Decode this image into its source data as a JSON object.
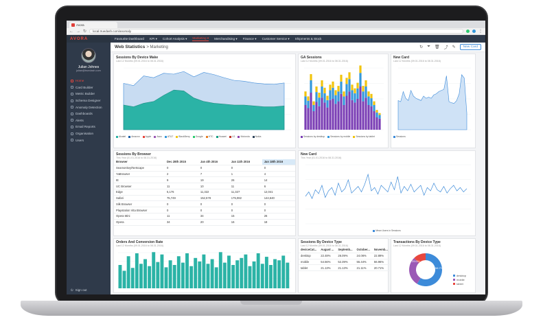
{
  "browser": {
    "tab_title": "Avora",
    "url": "local.truedash.com/anomaly"
  },
  "brand": "AVORA",
  "user": {
    "name": "Julian Johnes",
    "email": "julian@truedash.com"
  },
  "sidebar": {
    "items": [
      {
        "label": "Home",
        "icon": "home-icon",
        "active": true
      },
      {
        "label": "Card Builder",
        "icon": "card-icon"
      },
      {
        "label": "Metric Builder",
        "icon": "metric-icon"
      },
      {
        "label": "Schema Designer",
        "icon": "schema-icon"
      },
      {
        "label": "Anomaly Detection",
        "icon": "anomaly-icon"
      },
      {
        "label": "Dashboards",
        "icon": "dashboard-icon"
      },
      {
        "label": "Alerts",
        "icon": "bell-icon"
      },
      {
        "label": "Email Reports",
        "icon": "mail-icon"
      },
      {
        "label": "Organisation",
        "icon": "org-icon"
      },
      {
        "label": "Users",
        "icon": "users-icon"
      }
    ],
    "signout": "Sign out"
  },
  "topnav": [
    {
      "label": "Favourite Dashboard"
    },
    {
      "label": "KPI ▾"
    },
    {
      "label": "Cohort Analysis ▾"
    },
    {
      "label": "Marketing ▾",
      "active": true
    },
    {
      "label": "Merchandising ▾"
    },
    {
      "label": "Finance ▾"
    },
    {
      "label": "Customer Service ▾"
    },
    {
      "label": "Shipments & Stock"
    }
  ],
  "header": {
    "title": "Web Statistics",
    "sub": "> Marketing",
    "new_card": "New Card"
  },
  "cards": {
    "sessions_device": {
      "title": "Sessions By Device Make",
      "sub": "Last 12 Months (09.01.2016 to 08.31.2016)",
      "legend": [
        {
          "n": "Alcatel",
          "c": "#2bb3a6"
        },
        {
          "n": "Amazon",
          "c": "#1c5fa8"
        },
        {
          "n": "Apple",
          "c": "#e8473e"
        },
        {
          "n": "Asus",
          "c": "#9b59b6"
        },
        {
          "n": "AT&T",
          "c": "#3498db"
        },
        {
          "n": "BlackBerry",
          "c": "#f1c40f"
        },
        {
          "n": "Google",
          "c": "#2ecc71"
        },
        {
          "n": "HTC",
          "c": "#e67e22"
        },
        {
          "n": "Huawei",
          "c": "#16a085"
        },
        {
          "n": "LG",
          "c": "#c0392b"
        },
        {
          "n": "Motorola",
          "c": "#8e44ad"
        },
        {
          "n": "Nokia",
          "c": "#34495e"
        }
      ]
    },
    "ga_sessions": {
      "title": "GA Sessions",
      "sub": "Last 12 Months (09.01.2016 to 08.31.2016)",
      "legend": [
        {
          "n": "Sessions by desktop",
          "c": "#7b3fb5"
        },
        {
          "n": "Sessions by mobile",
          "c": "#3498db"
        },
        {
          "n": "Sessions by tablet",
          "c": "#f1c40f"
        }
      ]
    },
    "new_card_1": {
      "title": "New Card",
      "sub": "Last 12 Months (09.01.2016 to 08.31.2016)",
      "legend": [
        {
          "n": "Sessions",
          "c": "#3d8bd9"
        }
      ]
    },
    "sessions_browser": {
      "title": "Sessions By Browser",
      "sub": "This Year (01.01.2016 to 08.31.2016)",
      "columns": [
        "Browser",
        "Dec 28th 2015",
        "Jan 4th 2016",
        "Jan 11th 2016",
        "Jan 18th 2016"
      ],
      "rows": [
        [
          "Seamonkey/Netscape",
          "0",
          "0",
          "0",
          "0"
        ],
        [
          "YaBrowser",
          "2",
          "7",
          "1",
          "4"
        ],
        [
          "IE",
          "9",
          "19",
          "26",
          "14"
        ],
        [
          "UC Browser",
          "11",
          "10",
          "11",
          "6"
        ],
        [
          "Edge",
          "5,176",
          "11,322",
          "11,327",
          "12,041"
        ],
        [
          "Safari",
          "75,749",
          "152,578",
          "175,082",
          "144,640"
        ],
        [
          "Silk Browser",
          "0",
          "0",
          "0",
          "0"
        ],
        [
          "Playstation Vita Browser",
          "0",
          "0",
          "0",
          "0"
        ],
        [
          "Opera Mini",
          "11",
          "34",
          "15",
          "26"
        ],
        [
          "Opera",
          "34",
          "20",
          "16",
          "18"
        ]
      ]
    },
    "new_card_2": {
      "title": "New Card",
      "sub": "This Year (01.01.2016 to 08.31.2016)",
      "legend": [
        {
          "n": "Mean Users in Sessions",
          "c": "#3d8bd9"
        }
      ]
    },
    "orders": {
      "title": "Orders And Conversion Rate",
      "sub": "Last 12 Months (09.01.2016 to 08.31.2016)"
    },
    "sessions_device_type": {
      "title": "Sessions By Device Type",
      "sub": "Last 12 Months (09.01.2016 to 08.31.2016)",
      "columns": [
        "deviceCat...",
        "August ...",
        "Septemb...",
        "October...",
        "Novemb..."
      ],
      "rows": [
        [
          "desktop",
          "22.48%",
          "26.09%",
          "24.06%",
          "22.89%"
        ],
        [
          "mobile",
          "54.56%",
          "52.39%",
          "55.44%",
          "56.96%"
        ],
        [
          "tablet",
          "21.13%",
          "21.13%",
          "21.11%",
          "20.71%"
        ]
      ]
    },
    "transactions": {
      "title": "Transactions By Device Type",
      "sub": "Last 12 Months (09.01.2016 to 08.31.2016)",
      "legend": [
        {
          "n": "desktop",
          "c": "#3d8bd9"
        },
        {
          "n": "mobile",
          "c": "#9b59b6"
        },
        {
          "n": "tablet",
          "c": "#e8473e"
        }
      ],
      "labels": [
        "29.0%",
        "58.7%"
      ]
    }
  },
  "chart_data": [
    {
      "type": "area",
      "title": "Sessions By Device Make",
      "series": [
        {
          "name": "Alcatel",
          "values": [
            1050,
            1000,
            1220,
            1180,
            1280,
            1260,
            1320,
            1200,
            1300,
            1250,
            1180,
            1120,
            1100,
            1060,
            1040,
            1030,
            1060
          ]
        },
        {
          "name": "Amazon",
          "values": [
            560,
            520,
            600,
            640,
            780,
            900,
            880,
            720,
            640,
            600,
            580,
            560,
            560,
            540,
            520,
            520,
            540
          ]
        }
      ]
    },
    {
      "type": "bar",
      "title": "GA Sessions",
      "categories": [
        "1",
        "2",
        "3",
        "4",
        "5",
        "6",
        "7",
        "8",
        "9",
        "10",
        "11",
        "12",
        "13",
        "14",
        "15",
        "16",
        "17",
        "18",
        "19",
        "20",
        "21",
        "22",
        "23",
        "24",
        "25",
        "26",
        "27",
        "28"
      ],
      "series": [
        {
          "name": "Sessions by desktop",
          "values": [
            40,
            35,
            60,
            30,
            45,
            38,
            52,
            44,
            36,
            48,
            50,
            42,
            46,
            58,
            40,
            55,
            62,
            48,
            44,
            50,
            70,
            46,
            52,
            40,
            38,
            30,
            20,
            18
          ]
        },
        {
          "name": "Sessions by mobile",
          "values": [
            14,
            12,
            20,
            10,
            16,
            14,
            18,
            15,
            12,
            16,
            18,
            14,
            16,
            20,
            14,
            19,
            20,
            16,
            15,
            17,
            22,
            16,
            18,
            14,
            13,
            10,
            8,
            6
          ]
        },
        {
          "name": "Sessions by tablet",
          "values": [
            8,
            7,
            10,
            6,
            9,
            8,
            10,
            9,
            7,
            9,
            10,
            8,
            9,
            11,
            8,
            10,
            11,
            9,
            8,
            9,
            12,
            9,
            10,
            8,
            7,
            6,
            4,
            3
          ]
        }
      ]
    },
    {
      "type": "area",
      "title": "New Card",
      "series": [
        {
          "name": "Sessions",
          "values": [
            520,
            500,
            680,
            560,
            520,
            700,
            600,
            560,
            540,
            520,
            600,
            560,
            580,
            560,
            620,
            640,
            680,
            700,
            720,
            960,
            500,
            480,
            470,
            520,
            640,
            980,
            920,
            300
          ]
        }
      ]
    },
    {
      "type": "line",
      "title": "New Card",
      "series": [
        {
          "name": "Mean Users in Sessions",
          "values": [
            50,
            58,
            46,
            62,
            55,
            70,
            48,
            60,
            66,
            52,
            74,
            58,
            64,
            80,
            56,
            62,
            68,
            58,
            72,
            90,
            60,
            66,
            54,
            70,
            64,
            58,
            76,
            62,
            86,
            56,
            68,
            60,
            72,
            58,
            64,
            70,
            52,
            66,
            60,
            74,
            62,
            58,
            68,
            56,
            64,
            70,
            60,
            66,
            58,
            64
          ]
        }
      ]
    },
    {
      "type": "bar",
      "title": "Orders And Conversion Rate",
      "series": [
        {
          "name": "Orders",
          "values": [
            40,
            30,
            55,
            35,
            60,
            42,
            50,
            38,
            62,
            45,
            58,
            36,
            48,
            40,
            55,
            44,
            60,
            38,
            52,
            46,
            58,
            42,
            50,
            36,
            62,
            44,
            56,
            40,
            48,
            52,
            58,
            38,
            46,
            60,
            42,
            54,
            40,
            50,
            48,
            56,
            44
          ]
        }
      ]
    },
    {
      "type": "pie",
      "title": "Transactions By Device Type",
      "categories": [
        "desktop",
        "mobile",
        "tablet"
      ],
      "values": [
        58.7,
        29.0,
        12.3
      ]
    }
  ]
}
